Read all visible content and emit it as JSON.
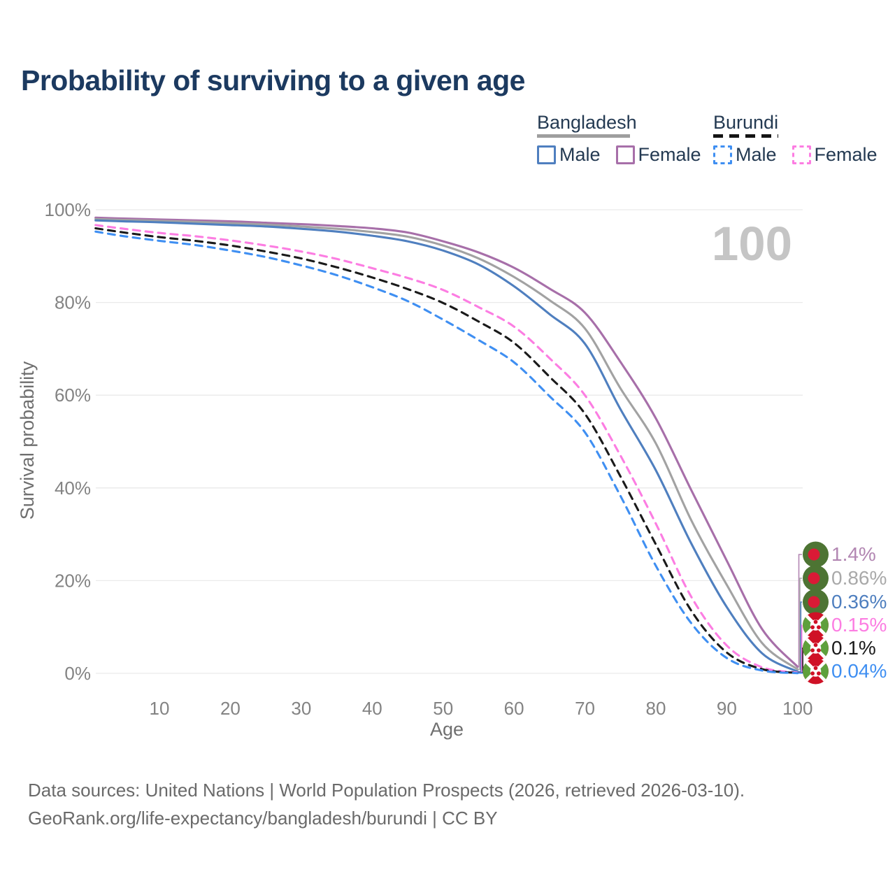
{
  "title": "Probability of surviving to a given age",
  "legend": {
    "groups": [
      {
        "country": "Bangladesh",
        "line_style": "solid",
        "items": [
          "Male",
          "Female"
        ]
      },
      {
        "country": "Burundi",
        "line_style": "dashed",
        "items": [
          "Male",
          "Female"
        ]
      }
    ]
  },
  "watermark": "100",
  "footer": {
    "line1": "Data sources: United Nations | World Population Prospects (2026, retrieved 2026-03-10).",
    "line2": "GeoRank.org/life-expectancy/bangladesh/burundi | CC BY"
  },
  "colors": {
    "bangladesh_male": "#4f7fbf",
    "bangladesh_female": "#a76fa9",
    "bangladesh_all": "#a2a2a2",
    "burundi_male": "#3f8ff2",
    "burundi_female": "#fc7de2",
    "burundi_all": "#1a1a1a",
    "grid": "#eaeaea",
    "tick_text": "#838383",
    "axis_title_text": "#6f6f6f",
    "watermark_text": "#c5c5c5",
    "flag_bd_green": "#4d7433",
    "flag_bd_red": "#da1a36",
    "flag_bu_red": "#cf1126",
    "flag_bu_green": "#5ea03c"
  },
  "chart_data": {
    "type": "line",
    "title": "Probability of surviving to a given age",
    "xlabel": "Age",
    "ylabel": "Survival probability",
    "xlim": [
      1,
      100
    ],
    "ylim": [
      0,
      100
    ],
    "grid": "horizontal-only",
    "legend_position": "top-right",
    "x_axis_ticks": {
      "values": [
        10,
        20,
        30,
        40,
        50,
        60,
        70,
        80,
        90,
        100
      ],
      "labels": [
        "10",
        "20",
        "30",
        "40",
        "50",
        "60",
        "70",
        "80",
        "90",
        "100"
      ]
    },
    "y_axis_ticks": {
      "values": [
        100,
        80,
        60,
        40,
        20,
        0
      ],
      "labels": [
        "100%",
        "80%",
        "60%",
        "40%",
        "20%",
        "0%"
      ]
    },
    "ages": [
      1,
      5,
      10,
      15,
      20,
      25,
      30,
      35,
      40,
      45,
      50,
      55,
      60,
      65,
      70,
      75,
      80,
      85,
      90,
      95,
      100
    ],
    "series": [
      {
        "name": "Bangladesh Female",
        "country": "Bangladesh",
        "sex": "Female",
        "color": "#a76fa9",
        "label_color": "#b286b2",
        "dashed": false,
        "flag": "bangladesh",
        "end_label": "1.4%",
        "values": [
          98.3,
          98.1,
          97.9,
          97.7,
          97.5,
          97.2,
          96.9,
          96.5,
          96.0,
          95.1,
          93.2,
          90.8,
          87.5,
          83.0,
          77.8,
          67.2,
          55.0,
          39.5,
          24.3,
          9.5,
          1.4
        ]
      },
      {
        "name": "Bangladesh Both sexes",
        "country": "Bangladesh",
        "sex": "Both",
        "color": "#a2a2a2",
        "label_color": "#a9a9a9",
        "dashed": false,
        "flag": "bangladesh",
        "end_label": "0.86%",
        "values": [
          98.0,
          97.8,
          97.6,
          97.4,
          97.1,
          96.8,
          96.4,
          95.9,
          95.2,
          94.2,
          92.3,
          89.5,
          85.5,
          80.5,
          74.4,
          61.5,
          49.6,
          33.0,
          19.1,
          6.5,
          0.86
        ]
      },
      {
        "name": "Bangladesh Male",
        "country": "Bangladesh",
        "sex": "Male",
        "color": "#4f7fbf",
        "label_color": "#4f7fbf",
        "dashed": false,
        "flag": "bangladesh",
        "end_label": "0.36%",
        "values": [
          97.7,
          97.5,
          97.3,
          97.0,
          96.7,
          96.4,
          95.9,
          95.3,
          94.4,
          93.2,
          91.2,
          88.2,
          83.5,
          77.5,
          71.1,
          57.0,
          43.8,
          28.0,
          14.3,
          4.3,
          0.36
        ]
      },
      {
        "name": "Burundi Female",
        "country": "Burundi",
        "sex": "Female",
        "color": "#fc7de2",
        "label_color": "#fc7de2",
        "dashed": true,
        "flag": "burundi",
        "end_label": "0.15%",
        "values": [
          96.7,
          95.9,
          95.0,
          94.3,
          93.4,
          92.3,
          91.0,
          89.4,
          87.4,
          85.3,
          82.7,
          79.0,
          74.8,
          68.0,
          60.0,
          47.0,
          32.3,
          16.5,
          6.0,
          1.3,
          0.15
        ]
      },
      {
        "name": "Burundi Both sexes",
        "country": "Burundi",
        "sex": "Both",
        "color": "#1a1a1a",
        "label_color": "#1a1a1a",
        "dashed": true,
        "flag": "burundi",
        "end_label": "0.1%",
        "values": [
          96.0,
          95.1,
          94.1,
          93.3,
          92.3,
          91.0,
          89.5,
          87.6,
          85.4,
          82.9,
          79.9,
          75.9,
          71.3,
          64.0,
          56.0,
          42.5,
          27.8,
          13.5,
          4.5,
          0.9,
          0.1
        ]
      },
      {
        "name": "Burundi Male",
        "country": "Burundi",
        "sex": "Male",
        "color": "#3f8ff2",
        "label_color": "#3f8ff2",
        "dashed": true,
        "flag": "burundi",
        "end_label": "0.04%",
        "values": [
          95.3,
          94.3,
          93.3,
          92.4,
          91.2,
          89.8,
          88.0,
          85.9,
          83.3,
          80.3,
          76.3,
          71.9,
          67.1,
          59.8,
          52.0,
          38.3,
          23.2,
          10.8,
          3.3,
          0.6,
          0.04
        ]
      }
    ]
  }
}
